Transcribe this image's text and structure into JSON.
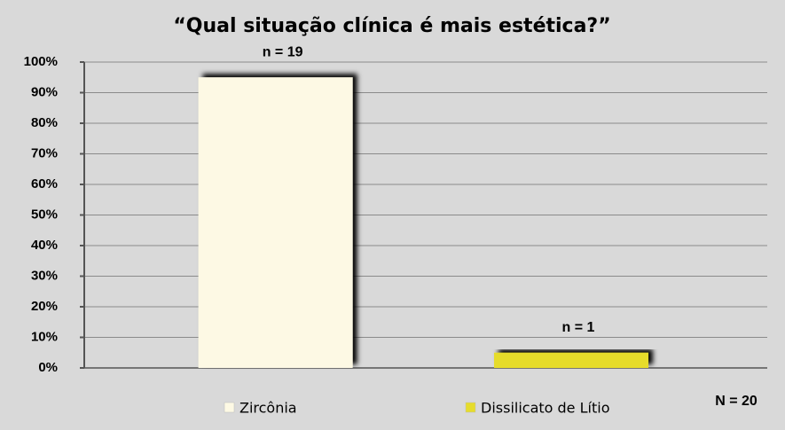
{
  "chart_data": {
    "type": "bar",
    "title": "“Qual situação clínica é mais estética?”",
    "categories": [
      null
    ],
    "series": [
      {
        "name": "Zircônia",
        "color": "#fdf9e4",
        "values": [
          95
        ]
      },
      {
        "name": "Dissilicato de Lítio",
        "color": "#e6dc2c",
        "values": [
          5
        ]
      }
    ],
    "bar_labels": [
      "n = 19",
      "n = 1"
    ],
    "note": "N = 20",
    "ylim": [
      0,
      100
    ],
    "yticks": [
      {
        "value": 0,
        "label": "0%"
      },
      {
        "value": 10,
        "label": "10%"
      },
      {
        "value": 20,
        "label": "20%"
      },
      {
        "value": 30,
        "label": "30%"
      },
      {
        "value": 40,
        "label": "40%"
      },
      {
        "value": 50,
        "label": "50%"
      },
      {
        "value": 60,
        "label": "60%"
      },
      {
        "value": 70,
        "label": "70%"
      },
      {
        "value": 80,
        "label": "80%"
      },
      {
        "value": 90,
        "label": "90%"
      },
      {
        "value": 100,
        "label": "100%"
      }
    ],
    "grid": true,
    "legend": "bottom"
  }
}
